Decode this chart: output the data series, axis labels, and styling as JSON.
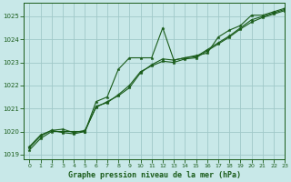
{
  "title": "Graphe pression niveau de la mer (hPa)",
  "xlim": [
    -0.5,
    23
  ],
  "ylim": [
    1018.8,
    1025.6
  ],
  "yticks": [
    1019,
    1020,
    1021,
    1022,
    1023,
    1024,
    1025
  ],
  "xticks": [
    0,
    1,
    2,
    3,
    4,
    5,
    6,
    7,
    8,
    9,
    10,
    11,
    12,
    13,
    14,
    15,
    16,
    17,
    18,
    19,
    20,
    21,
    22,
    23
  ],
  "bg_color": "#c8e8e8",
  "grid_color": "#a0c8c8",
  "line_color": "#1a5c1a",
  "series1": [
    1019.2,
    1019.7,
    1020.0,
    1020.0,
    1020.0,
    1020.0,
    1021.3,
    1021.5,
    1022.7,
    1023.2,
    1023.2,
    1023.2,
    1024.5,
    1023.1,
    1023.2,
    1023.3,
    1023.4,
    1024.1,
    1024.4,
    1024.6,
    1025.05,
    1025.05,
    1025.2,
    1025.35
  ],
  "series2": [
    1019.3,
    1019.8,
    1020.05,
    1020.1,
    1019.95,
    1020.05,
    1021.05,
    1021.3,
    1021.55,
    1021.9,
    1022.55,
    1022.9,
    1023.15,
    1023.1,
    1023.2,
    1023.25,
    1023.55,
    1023.85,
    1024.15,
    1024.5,
    1024.85,
    1025.0,
    1025.15,
    1025.3
  ],
  "series3": [
    1019.35,
    1019.85,
    1020.05,
    1019.95,
    1019.9,
    1020.0,
    1021.1,
    1021.25,
    1021.6,
    1022.0,
    1022.6,
    1022.85,
    1023.05,
    1023.0,
    1023.15,
    1023.2,
    1023.5,
    1023.8,
    1024.1,
    1024.45,
    1024.75,
    1024.95,
    1025.1,
    1025.25
  ]
}
